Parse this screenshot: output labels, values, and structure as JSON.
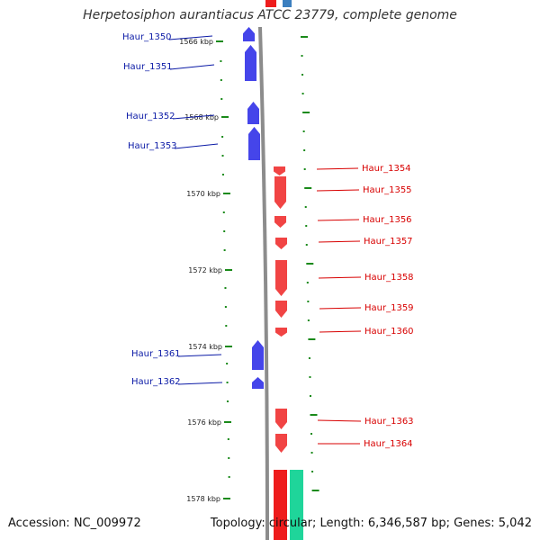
{
  "title": "Herpetosiphon aurantiacus ATCC 23779, complete genome",
  "accession_text": "Accession: NC_009972",
  "topology_text": "Topology: circular; Length: 6,346,587 bp; Genes: 5,042",
  "colors": {
    "backbone": "#8c8c8c",
    "tick": "#1a8a1a",
    "forward_gene": "#1d1de6",
    "reverse_gene": "#ee1c1c",
    "forward_label": "#0b1aa6",
    "reverse_label": "#d80000",
    "teal_feature": "#1fd59a",
    "top_blue_feature": "#3b7fbf"
  },
  "ticks": [
    {
      "label": "1566 kbp"
    },
    {
      "label": "1568 kbp"
    },
    {
      "label": "1570 kbp"
    },
    {
      "label": "1572 kbp"
    },
    {
      "label": "1574 kbp"
    },
    {
      "label": "1576 kbp"
    },
    {
      "label": "1578 kbp"
    }
  ],
  "genes": [
    {
      "name": "Haur_1350",
      "strand": "forward"
    },
    {
      "name": "Haur_1351",
      "strand": "forward"
    },
    {
      "name": "Haur_1352",
      "strand": "forward"
    },
    {
      "name": "Haur_1353",
      "strand": "forward"
    },
    {
      "name": "Haur_1354",
      "strand": "reverse"
    },
    {
      "name": "Haur_1355",
      "strand": "reverse"
    },
    {
      "name": "Haur_1356",
      "strand": "reverse"
    },
    {
      "name": "Haur_1357",
      "strand": "reverse"
    },
    {
      "name": "Haur_1358",
      "strand": "reverse"
    },
    {
      "name": "Haur_1359",
      "strand": "reverse"
    },
    {
      "name": "Haur_1360",
      "strand": "reverse"
    },
    {
      "name": "Haur_1361",
      "strand": "forward"
    },
    {
      "name": "Haur_1362",
      "strand": "forward"
    },
    {
      "name": "Haur_1363",
      "strand": "reverse"
    },
    {
      "name": "Haur_1364",
      "strand": "reverse"
    }
  ]
}
